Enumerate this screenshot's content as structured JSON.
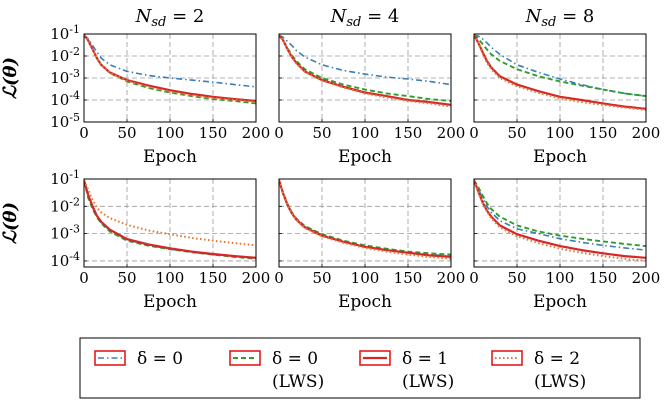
{
  "figure": {
    "ylabel": "ℒ(θ)",
    "xlabel": "Epoch",
    "col_titles": [
      "N_sd = 2",
      "N_sd = 4",
      "N_sd = 8"
    ],
    "x_ticks": [
      "0",
      "50",
      "100",
      "150",
      "200"
    ],
    "y_ticks": [
      "10^-1",
      "10^-2",
      "10^-3",
      "10^-4",
      "10^-5"
    ]
  },
  "colors": {
    "delta0": "#3a7fb5",
    "delta0_lws": "#2e9d2e",
    "delta1_lws": "#d62728",
    "delta2_lws": "#e07b39",
    "legend_box": "#e41a1c",
    "grid": "#9a9a9a"
  },
  "legend": [
    {
      "line1": "δ = 0",
      "line2": ""
    },
    {
      "line1": "δ = 0",
      "line2": "(LWS)"
    },
    {
      "line1": "δ = 1",
      "line2": "(LWS)"
    },
    {
      "line1": "δ = 2",
      "line2": "(LWS)"
    }
  ],
  "chart_data": [
    {
      "type": "line",
      "row": 0,
      "col": 0,
      "title": "N_sd = 2",
      "xlabel": "Epoch",
      "ylabel": "ℒ(θ)",
      "xlim": [
        0,
        200
      ],
      "ylim": [
        1e-05,
        0.1
      ],
      "yscale": "log",
      "grid": true,
      "x": [
        0,
        5,
        10,
        15,
        20,
        30,
        50,
        75,
        100,
        125,
        150,
        175,
        200
      ],
      "series": [
        {
          "name": "δ = 0",
          "values": [
            0.09,
            0.06,
            0.03,
            0.015,
            0.008,
            0.004,
            0.002,
            0.0013,
            0.001,
            0.0008,
            0.00065,
            0.0005,
            0.0004
          ]
        },
        {
          "name": "δ = 0 (LWS)",
          "values": [
            0.09,
            0.05,
            0.02,
            0.008,
            0.004,
            0.0017,
            0.0007,
            0.00035,
            0.00022,
            0.00015,
            0.00011,
            9e-05,
            7e-05
          ]
        },
        {
          "name": "δ = 1 (LWS)",
          "values": [
            0.09,
            0.05,
            0.02,
            0.008,
            0.004,
            0.0018,
            0.0008,
            0.00045,
            0.00028,
            0.00019,
            0.00014,
            0.00011,
            9e-05
          ]
        },
        {
          "name": "δ = 2 (LWS)",
          "values": [
            0.09,
            0.05,
            0.02,
            0.008,
            0.004,
            0.0017,
            0.00075,
            0.00038,
            0.00023,
            0.00016,
            0.00012,
            0.0001,
            8e-05
          ]
        }
      ]
    },
    {
      "type": "line",
      "row": 0,
      "col": 1,
      "title": "N_sd = 4",
      "xlabel": "Epoch",
      "xlim": [
        0,
        200
      ],
      "ylim": [
        1e-05,
        0.1
      ],
      "yscale": "log",
      "grid": true,
      "x": [
        0,
        5,
        10,
        15,
        20,
        30,
        50,
        75,
        100,
        125,
        150,
        175,
        200
      ],
      "series": [
        {
          "name": "δ = 0",
          "values": [
            0.09,
            0.07,
            0.045,
            0.03,
            0.018,
            0.009,
            0.004,
            0.0022,
            0.0015,
            0.0011,
            0.0009,
            0.0007,
            0.0005
          ]
        },
        {
          "name": "δ = 0 (LWS)",
          "values": [
            0.09,
            0.05,
            0.022,
            0.011,
            0.006,
            0.0025,
            0.001,
            0.0005,
            0.0003,
            0.0002,
            0.00015,
            0.00011,
            9e-05
          ]
        },
        {
          "name": "δ = 1 (LWS)",
          "values": [
            0.09,
            0.05,
            0.02,
            0.009,
            0.005,
            0.002,
            0.0008,
            0.0004,
            0.00022,
            0.00015,
            0.0001,
            8e-05,
            6e-05
          ]
        },
        {
          "name": "δ = 2 (LWS)",
          "values": [
            0.09,
            0.05,
            0.02,
            0.009,
            0.0045,
            0.0019,
            0.00075,
            0.00037,
            0.0002,
            0.00013,
            9e-05,
            7e-05,
            5e-05
          ]
        }
      ]
    },
    {
      "type": "line",
      "row": 0,
      "col": 2,
      "title": "N_sd = 8",
      "xlabel": "Epoch",
      "xlim": [
        0,
        200
      ],
      "ylim": [
        1e-05,
        0.1
      ],
      "yscale": "log",
      "grid": true,
      "x": [
        0,
        5,
        10,
        15,
        20,
        30,
        50,
        75,
        100,
        125,
        150,
        175,
        200
      ],
      "series": [
        {
          "name": "δ = 0",
          "values": [
            0.09,
            0.08,
            0.06,
            0.04,
            0.025,
            0.012,
            0.004,
            0.0018,
            0.0009,
            0.0005,
            0.0003,
            0.0002,
            0.00015
          ]
        },
        {
          "name": "δ = 0 (LWS)",
          "values": [
            0.09,
            0.06,
            0.035,
            0.02,
            0.012,
            0.006,
            0.0025,
            0.0012,
            0.0007,
            0.00045,
            0.0003,
            0.0002,
            0.00015
          ]
        },
        {
          "name": "δ = 1 (LWS)",
          "values": [
            0.09,
            0.04,
            0.015,
            0.006,
            0.003,
            0.0012,
            0.0005,
            0.00025,
            0.00014,
            0.0001,
            7e-05,
            5e-05,
            4e-05
          ]
        },
        {
          "name": "δ = 2 (LWS)",
          "values": [
            0.09,
            0.04,
            0.013,
            0.005,
            0.0025,
            0.001,
            0.00042,
            0.00021,
            0.00012,
            8e-05,
            6e-05,
            4.5e-05,
            3.5e-05
          ]
        }
      ]
    },
    {
      "type": "line",
      "row": 1,
      "col": 0,
      "xlabel": "Epoch",
      "ylabel": "ℒ(θ)",
      "xlim": [
        0,
        200
      ],
      "ylim": [
        6e-05,
        0.1
      ],
      "yscale": "log",
      "grid": true,
      "x": [
        0,
        5,
        10,
        15,
        20,
        30,
        50,
        75,
        100,
        125,
        150,
        175,
        200
      ],
      "series": [
        {
          "name": "δ = 0",
          "values": [
            0.09,
            0.025,
            0.009,
            0.004,
            0.0025,
            0.0013,
            0.0006,
            0.00038,
            0.00027,
            0.00021,
            0.00017,
            0.00015,
            0.00013
          ]
        },
        {
          "name": "δ = 0 (LWS)",
          "values": [
            0.09,
            0.02,
            0.008,
            0.004,
            0.0024,
            0.0012,
            0.00055,
            0.00036,
            0.00027,
            0.00021,
            0.00017,
            0.00014,
            0.00012
          ]
        },
        {
          "name": "δ = 1 (LWS)",
          "values": [
            0.09,
            0.025,
            0.01,
            0.0045,
            0.0027,
            0.0014,
            0.00063,
            0.0004,
            0.00029,
            0.00022,
            0.00018,
            0.00015,
            0.00013
          ]
        },
        {
          "name": "δ = 2 (LWS)",
          "values": [
            0.09,
            0.04,
            0.017,
            0.009,
            0.006,
            0.0037,
            0.0021,
            0.0013,
            0.00095,
            0.0007,
            0.00055,
            0.00045,
            0.00037
          ]
        }
      ]
    },
    {
      "type": "line",
      "row": 1,
      "col": 1,
      "xlabel": "Epoch",
      "xlim": [
        0,
        200
      ],
      "ylim": [
        6e-05,
        0.1
      ],
      "yscale": "log",
      "grid": true,
      "x": [
        0,
        5,
        10,
        15,
        20,
        30,
        50,
        75,
        100,
        125,
        150,
        175,
        200
      ],
      "series": [
        {
          "name": "δ = 0",
          "values": [
            0.09,
            0.03,
            0.012,
            0.006,
            0.0035,
            0.0018,
            0.0009,
            0.0005,
            0.00033,
            0.00025,
            0.0002,
            0.00017,
            0.00015
          ]
        },
        {
          "name": "δ = 0 (LWS)",
          "values": [
            0.09,
            0.03,
            0.012,
            0.006,
            0.0036,
            0.0019,
            0.00095,
            0.00055,
            0.00037,
            0.00028,
            0.00022,
            0.00019,
            0.00017
          ]
        },
        {
          "name": "δ = 1 (LWS)",
          "values": [
            0.09,
            0.028,
            0.011,
            0.0055,
            0.0033,
            0.0017,
            0.00085,
            0.0005,
            0.00033,
            0.00025,
            0.0002,
            0.00016,
            0.00014
          ]
        },
        {
          "name": "δ = 2 (LWS)",
          "values": [
            0.09,
            0.028,
            0.011,
            0.0055,
            0.0032,
            0.0016,
            0.0008,
            0.00046,
            0.0003,
            0.00022,
            0.00017,
            0.00014,
            0.00012
          ]
        }
      ]
    },
    {
      "type": "line",
      "row": 1,
      "col": 2,
      "xlabel": "Epoch",
      "xlim": [
        0,
        200
      ],
      "ylim": [
        6e-05,
        0.1
      ],
      "yscale": "log",
      "grid": true,
      "x": [
        0,
        5,
        10,
        15,
        20,
        30,
        50,
        75,
        100,
        125,
        150,
        175,
        200
      ],
      "series": [
        {
          "name": "δ = 0",
          "values": [
            0.09,
            0.045,
            0.02,
            0.01,
            0.006,
            0.003,
            0.0015,
            0.001,
            0.00065,
            0.00048,
            0.00037,
            0.0003,
            0.00025
          ]
        },
        {
          "name": "δ = 0 (LWS)",
          "values": [
            0.09,
            0.05,
            0.025,
            0.013,
            0.008,
            0.0042,
            0.002,
            0.0012,
            0.00085,
            0.00065,
            0.00052,
            0.00042,
            0.00035
          ]
        },
        {
          "name": "δ = 1 (LWS)",
          "values": [
            0.09,
            0.035,
            0.014,
            0.007,
            0.0042,
            0.002,
            0.00095,
            0.00055,
            0.00035,
            0.00025,
            0.00019,
            0.00015,
            0.00013
          ]
        },
        {
          "name": "δ = 2 (LWS)",
          "values": [
            0.09,
            0.033,
            0.013,
            0.0065,
            0.0037,
            0.0017,
            0.0008,
            0.00045,
            0.00028,
            0.0002,
            0.00015,
            0.00012,
            0.0001
          ]
        }
      ]
    }
  ]
}
